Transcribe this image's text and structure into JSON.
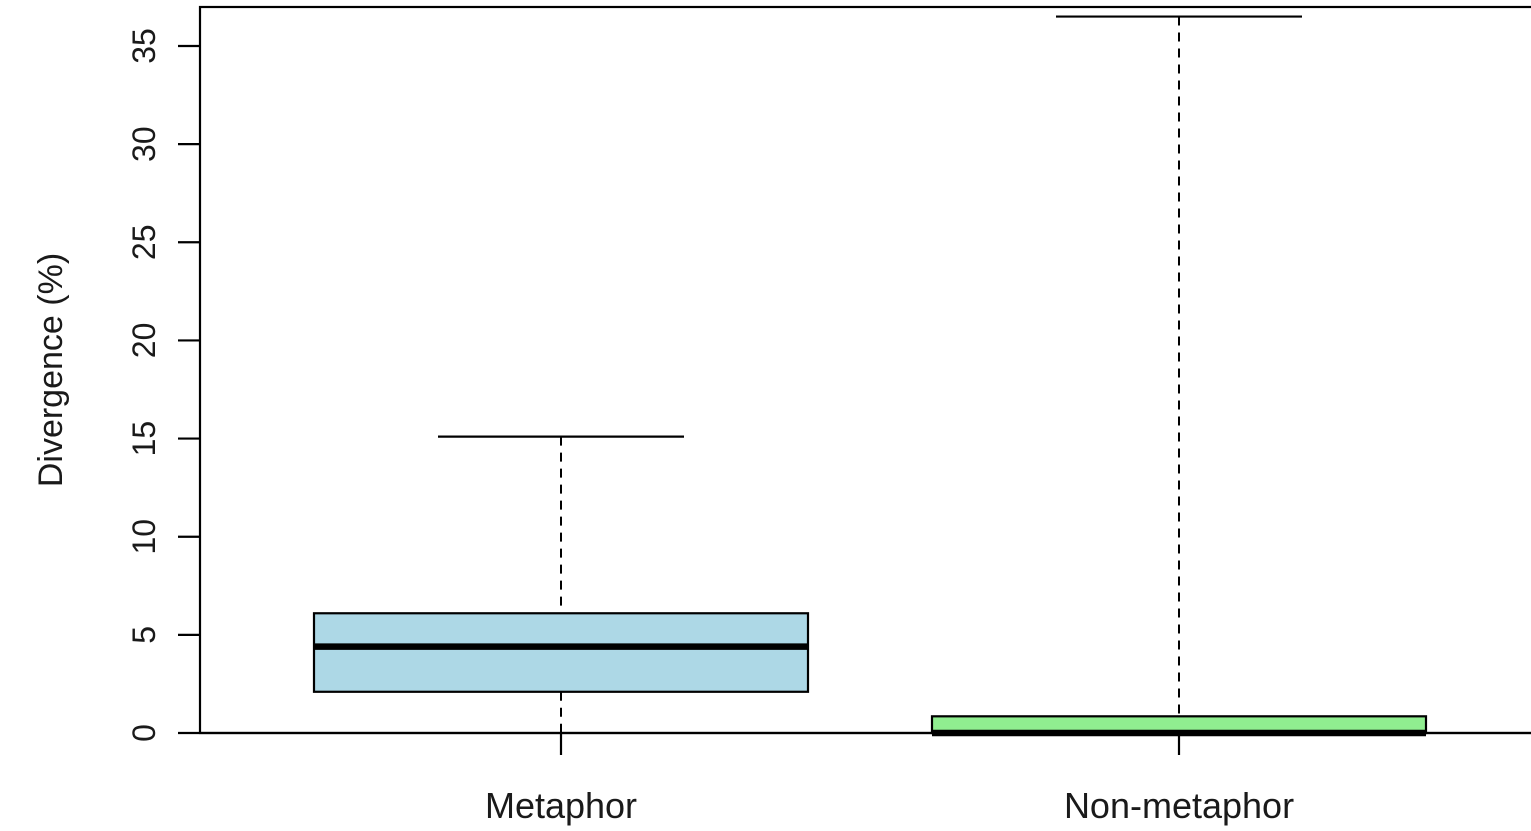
{
  "chart_data": {
    "type": "boxplot",
    "title": "",
    "xlabel": "",
    "ylabel": "Divergence (%)",
    "ylim": [
      0,
      36
    ],
    "yticks": [
      0,
      5,
      10,
      15,
      20,
      25,
      30,
      35
    ],
    "grid": false,
    "categories": [
      "Metaphor",
      "Non-metaphor"
    ],
    "boxes": [
      {
        "category": "Metaphor",
        "color": "#ADD8E6",
        "whisker_low": 0,
        "q1": 2.1,
        "median": 4.4,
        "q3": 6.1,
        "whisker_high": 15.1
      },
      {
        "category": "Non-metaphor",
        "color": "#90EE90",
        "whisker_low": 0,
        "q1": 0,
        "median": 0,
        "q3": 0.85,
        "whisker_high": 36.5
      }
    ]
  }
}
